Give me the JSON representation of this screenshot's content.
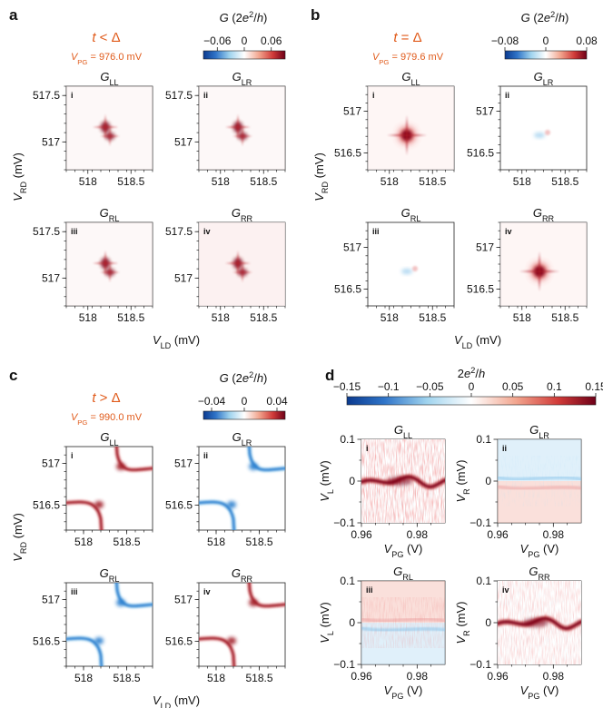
{
  "colors": {
    "red": "#7f0016",
    "blue": "#0b3a8f",
    "orange": "#e05a1a",
    "white": "#ffffff"
  },
  "chart_data": [
    {
      "panel": "a",
      "type": "heatmap",
      "condition": "t < Δ",
      "vpg_label": "V_PG = 976.0 mV",
      "colorbar": {
        "label": "G (2e²/h)",
        "min": -0.06,
        "max": 0.06,
        "ticks": [
          "−0.06",
          "0",
          "0.06"
        ]
      },
      "xlabel": "V_LD (mV)",
      "ylabel": "V_RD (mV)",
      "xlim": [
        517.75,
        518.75
      ],
      "ylim": [
        516.7,
        517.6
      ],
      "xticks": [
        518,
        518.5
      ],
      "yticks": [
        517,
        517.5
      ],
      "subplots": [
        {
          "id": "i",
          "title": "G_LL",
          "features": "positive peak pair near (518.27, 517.08) and (518.3, 516.98) with crossing lines"
        },
        {
          "id": "ii",
          "title": "G_LR",
          "features": "positive peak pair, weaker"
        },
        {
          "id": "iii",
          "title": "G_RL",
          "features": "positive peak pair"
        },
        {
          "id": "iv",
          "title": "G_RR",
          "features": "positive peak pair with strong crossing lines"
        }
      ]
    },
    {
      "panel": "b",
      "type": "heatmap",
      "condition": "t = Δ",
      "vpg_label": "V_PG = 979.6 mV",
      "colorbar": {
        "label": "G (2e²/h)",
        "min": -0.08,
        "max": 0.08,
        "ticks": [
          "−0.08",
          "0",
          "0.08"
        ]
      },
      "xlabel": "V_LD (mV)",
      "ylabel": "V_RD (mV)",
      "xlim": [
        517.75,
        518.75
      ],
      "ylim": [
        516.3,
        517.3
      ],
      "xticks": [
        518,
        518.5
      ],
      "yticks": [
        516.5,
        517
      ],
      "subplots": [
        {
          "id": "i",
          "title": "G_LL",
          "features": "single strong positive peak at (518.27, 516.83)"
        },
        {
          "id": "ii",
          "title": "G_LR",
          "features": "weak negative cross, faint positive"
        },
        {
          "id": "iii",
          "title": "G_RL",
          "features": "weak negative cross, faint positive"
        },
        {
          "id": "iv",
          "title": "G_RR",
          "features": "single strong positive peak at (518.27, 516.75)"
        }
      ]
    },
    {
      "panel": "c",
      "type": "heatmap",
      "condition": "t > Δ",
      "vpg_label": "V_PG = 990.0 mV",
      "colorbar": {
        "label": "G (2e²/h)",
        "min": -0.05,
        "max": 0.05,
        "ticks": [
          "−0.04",
          "0",
          "0.04"
        ]
      },
      "xlabel": "V_LD (mV)",
      "ylabel": "V_RD (mV)",
      "xlim": [
        517.8,
        518.8
      ],
      "ylim": [
        516.2,
        517.2
      ],
      "xticks": [
        518,
        518.5
      ],
      "yticks": [
        516.5,
        517
      ],
      "subplots": [
        {
          "id": "i",
          "title": "G_LL",
          "features": "two positive hyperbolic arcs (avoided crossing)"
        },
        {
          "id": "ii",
          "title": "G_LR",
          "features": "two negative hyperbolic arcs"
        },
        {
          "id": "iii",
          "title": "G_RL",
          "features": "two negative hyperbolic arcs"
        },
        {
          "id": "iv",
          "title": "G_RR",
          "features": "two positive hyperbolic arcs"
        }
      ]
    },
    {
      "panel": "d",
      "type": "heatmap",
      "colorbar": {
        "label": "2e²/h",
        "min": -0.15,
        "max": 0.15,
        "ticks": [
          "−0.15",
          "−0.1",
          "−0.05",
          "0",
          "0.05",
          "0.1",
          "0.15"
        ]
      },
      "xlabel": "V_PG (V)",
      "xlim": [
        0.96,
        0.99
      ],
      "ylim": [
        -0.1,
        0.1
      ],
      "xticks": [
        "0.96",
        "0.98"
      ],
      "yticks": [
        "−0.1",
        "0",
        "0.1"
      ],
      "subplots": [
        {
          "id": "i",
          "title": "G_LL",
          "ylabel": "V_L (mV)",
          "features": "strong positive zero-bias band with oscillation"
        },
        {
          "id": "ii",
          "title": "G_LR",
          "ylabel": "V_R (mV)",
          "features": "weak positive below, negative above zero"
        },
        {
          "id": "iii",
          "title": "G_RL",
          "ylabel": "V_L (mV)",
          "features": "weak positive above, negative below zero"
        },
        {
          "id": "iv",
          "title": "G_RR",
          "ylabel": "V_R (mV)",
          "features": "strong positive zero-bias band with oscillation"
        }
      ]
    }
  ]
}
